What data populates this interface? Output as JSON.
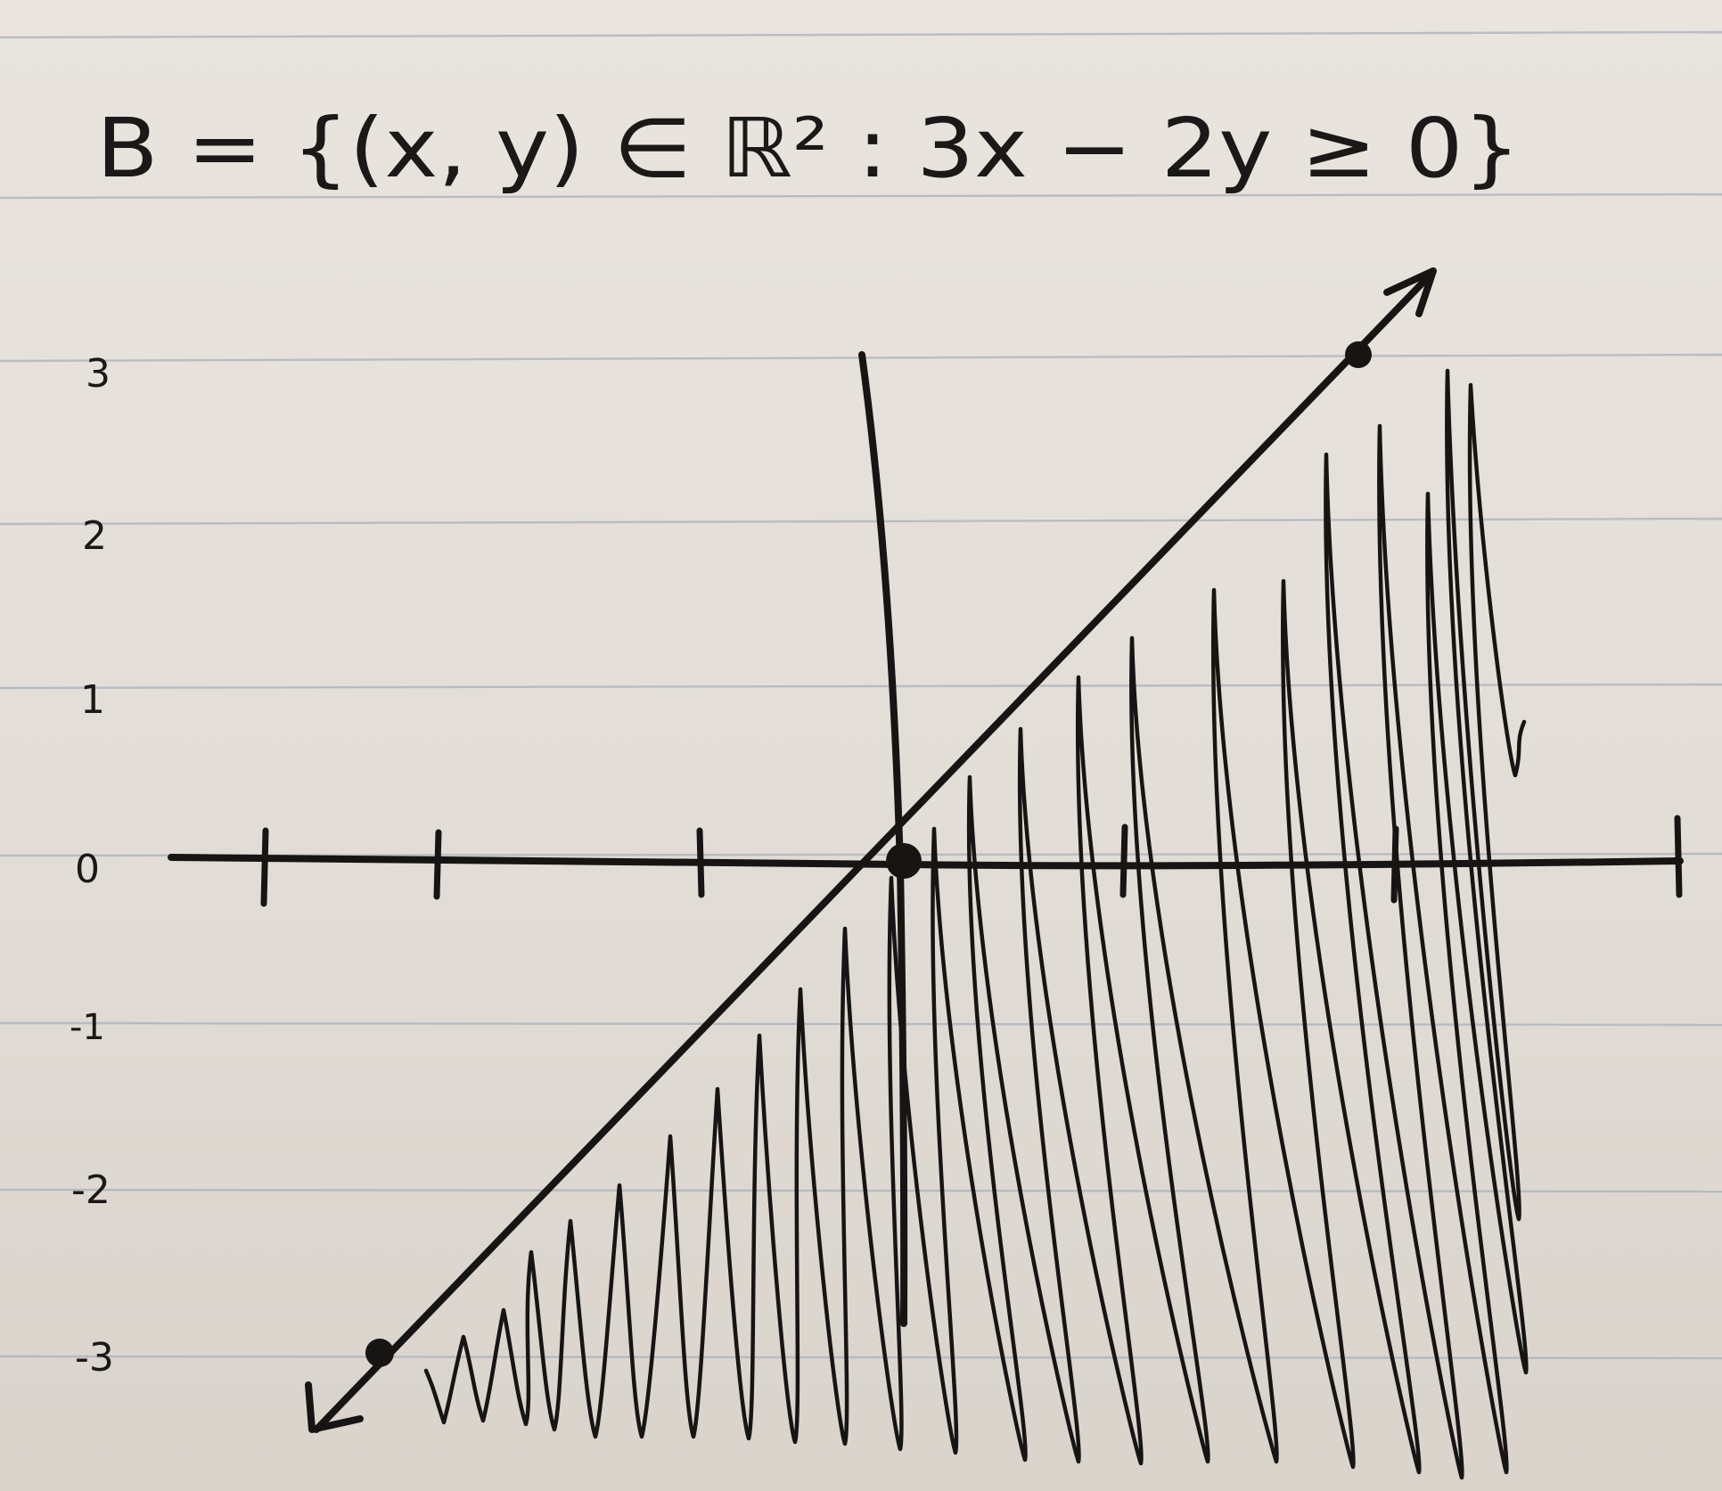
{
  "title": "B = {(x, y) ∈ ℝ² : 3x − 2y ≥ 0}",
  "y_tick_labels": [
    "3",
    "2",
    "1",
    "0",
    "-1",
    "-2",
    "-3"
  ],
  "colors": {
    "paper": "#e6e1db",
    "ruled_line": "#a9b1bb",
    "ink": "#161514"
  },
  "boundary_line": {
    "equation": "3x - 2y = 0",
    "marked_points": [
      [
        -2,
        -3
      ],
      [
        0,
        0
      ],
      [
        2,
        3
      ]
    ],
    "arrows": "both ends"
  },
  "shaded_region": "3x - 2y ≥ 0 (below and right of the line)",
  "y_axis_ticks": [
    3,
    2,
    1,
    0,
    -1,
    -2,
    -3
  ]
}
